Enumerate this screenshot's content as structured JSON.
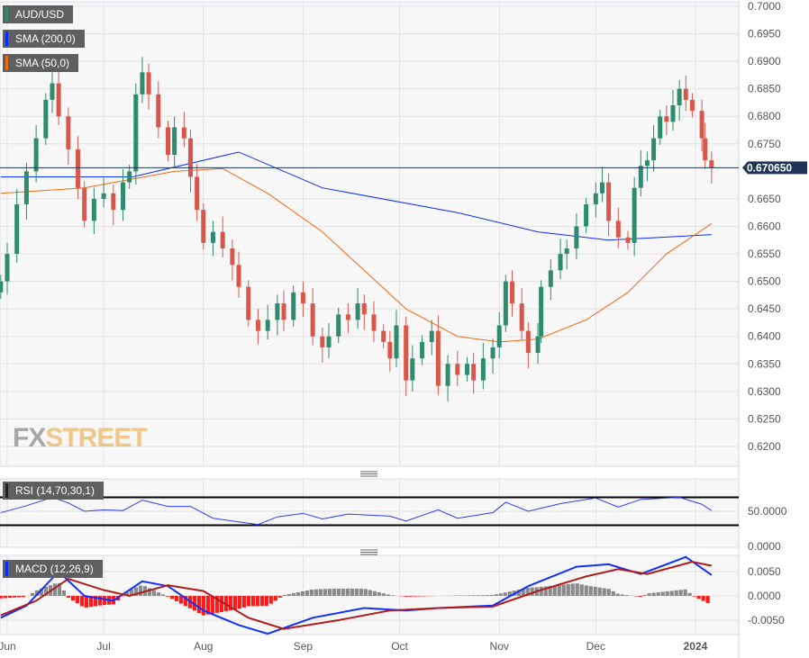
{
  "legend": {
    "symbol": {
      "label": "AUD/USD",
      "color": "#2e8b6e"
    },
    "sma200": {
      "label": "SMA (200,0)",
      "color": "#0a2dff"
    },
    "sma50": {
      "label": "SMA (50,0)",
      "color": "#f06a10"
    },
    "rsi": {
      "label": "RSI (14,70,30,1)",
      "color": "#222222"
    },
    "macd": {
      "label": "MACD (12,26,9)",
      "color": "#0a2dff"
    }
  },
  "logo": {
    "fx": "FX",
    "street": "STREET"
  },
  "chart_data": {
    "type": "candlestick",
    "current_price": "0.670650",
    "ylim": [
      0.615,
      0.7
    ],
    "yticks": [
      "0.7000",
      "0.6950",
      "0.6900",
      "0.6850",
      "0.6800",
      "0.6750",
      "0.6650",
      "0.6600",
      "0.6550",
      "0.6500",
      "0.6450",
      "0.6400",
      "0.6350",
      "0.6300",
      "0.6250",
      "0.6200"
    ],
    "xticks": [
      [
        "Jun",
        "2023-06-01"
      ],
      [
        "Jul",
        "2023-07-01"
      ],
      [
        "Aug",
        "2023-08-01"
      ],
      [
        "Sep",
        "2023-09-01"
      ],
      [
        "Oct",
        "2023-10-01"
      ],
      [
        "Nov",
        "2023-11-01"
      ],
      [
        "Dec",
        "2023-12-01"
      ],
      [
        "2024",
        "2024-01-01"
      ]
    ],
    "closes": [
      [
        "2023-05-30",
        0.65
      ],
      [
        "2023-06-01",
        0.655
      ],
      [
        "2023-06-04",
        0.664
      ],
      [
        "2023-06-07",
        0.67
      ],
      [
        "2023-06-10",
        0.676
      ],
      [
        "2023-06-13",
        0.683
      ],
      [
        "2023-06-15",
        0.686
      ],
      [
        "2023-06-17",
        0.68
      ],
      [
        "2023-06-20",
        0.674
      ],
      [
        "2023-06-23",
        0.667
      ],
      [
        "2023-06-25",
        0.661
      ],
      [
        "2023-06-28",
        0.665
      ],
      [
        "2023-07-01",
        0.666
      ],
      [
        "2023-07-04",
        0.663
      ],
      [
        "2023-07-07",
        0.668
      ],
      [
        "2023-07-09",
        0.67
      ],
      [
        "2023-07-11",
        0.684
      ],
      [
        "2023-07-13",
        0.688
      ],
      [
        "2023-07-15",
        0.684
      ],
      [
        "2023-07-18",
        0.678
      ],
      [
        "2023-07-21",
        0.673
      ],
      [
        "2023-07-23",
        0.678
      ],
      [
        "2023-07-26",
        0.676
      ],
      [
        "2023-07-28",
        0.669
      ],
      [
        "2023-07-30",
        0.663
      ],
      [
        "2023-08-01",
        0.657
      ],
      [
        "2023-08-04",
        0.659
      ],
      [
        "2023-08-07",
        0.656
      ],
      [
        "2023-08-10",
        0.653
      ],
      [
        "2023-08-12",
        0.649
      ],
      [
        "2023-08-15",
        0.643
      ],
      [
        "2023-08-18",
        0.641
      ],
      [
        "2023-08-21",
        0.643
      ],
      [
        "2023-08-24",
        0.646
      ],
      [
        "2023-08-26",
        0.643
      ],
      [
        "2023-08-29",
        0.648
      ],
      [
        "2023-09-01",
        0.646
      ],
      [
        "2023-09-04",
        0.64
      ],
      [
        "2023-09-07",
        0.638
      ],
      [
        "2023-09-09",
        0.64
      ],
      [
        "2023-09-12",
        0.644
      ],
      [
        "2023-09-15",
        0.643
      ],
      [
        "2023-09-18",
        0.646
      ],
      [
        "2023-09-20",
        0.644
      ],
      [
        "2023-09-23",
        0.641
      ],
      [
        "2023-09-26",
        0.639
      ],
      [
        "2023-09-28",
        0.636
      ],
      [
        "2023-09-30",
        0.642
      ],
      [
        "2023-10-03",
        0.632
      ],
      [
        "2023-10-05",
        0.636
      ],
      [
        "2023-10-08",
        0.639
      ],
      [
        "2023-10-11",
        0.641
      ],
      [
        "2023-10-13",
        0.631
      ],
      [
        "2023-10-16",
        0.635
      ],
      [
        "2023-10-19",
        0.633
      ],
      [
        "2023-10-22",
        0.635
      ],
      [
        "2023-10-24",
        0.632
      ],
      [
        "2023-10-27",
        0.636
      ],
      [
        "2023-10-30",
        0.638
      ],
      [
        "2023-11-01",
        0.642
      ],
      [
        "2023-11-03",
        0.65
      ],
      [
        "2023-11-05",
        0.646
      ],
      [
        "2023-11-08",
        0.641
      ],
      [
        "2023-11-10",
        0.637
      ],
      [
        "2023-11-13",
        0.64
      ],
      [
        "2023-11-14",
        0.649
      ],
      [
        "2023-11-17",
        0.652
      ],
      [
        "2023-11-20",
        0.655
      ],
      [
        "2023-11-22",
        0.656
      ],
      [
        "2023-11-25",
        0.66
      ],
      [
        "2023-11-28",
        0.664
      ],
      [
        "2023-12-01",
        0.666
      ],
      [
        "2023-12-03",
        0.668
      ],
      [
        "2023-12-05",
        0.661
      ],
      [
        "2023-12-08",
        0.658
      ],
      [
        "2023-12-11",
        0.657
      ],
      [
        "2023-12-13",
        0.667
      ],
      [
        "2023-12-15",
        0.671
      ],
      [
        "2023-12-17",
        0.672
      ],
      [
        "2023-12-19",
        0.676
      ],
      [
        "2023-12-21",
        0.68
      ],
      [
        "2023-12-23",
        0.679
      ],
      [
        "2023-12-25",
        0.682
      ],
      [
        "2023-12-27",
        0.685
      ],
      [
        "2023-12-29",
        0.683
      ],
      [
        "2023-12-31",
        0.681
      ],
      [
        "2024-01-03",
        0.676
      ],
      [
        "2024-01-04",
        0.672
      ],
      [
        "2024-01-06",
        0.6706
      ]
    ],
    "sma200": [
      [
        "2023-05-30",
        0.669
      ],
      [
        "2023-07-10",
        0.669
      ],
      [
        "2023-08-12",
        0.6735
      ],
      [
        "2023-09-07",
        0.667
      ],
      [
        "2023-10-19",
        0.6625
      ],
      [
        "2023-11-13",
        0.659
      ],
      [
        "2023-12-05",
        0.6575
      ],
      [
        "2024-01-06",
        0.6585
      ]
    ],
    "sma50": [
      [
        "2023-05-30",
        0.666
      ],
      [
        "2023-06-25",
        0.667
      ],
      [
        "2023-07-23",
        0.67
      ],
      [
        "2023-08-07",
        0.6705
      ],
      [
        "2023-08-21",
        0.666
      ],
      [
        "2023-09-07",
        0.659
      ],
      [
        "2023-09-20",
        0.652
      ],
      [
        "2023-10-03",
        0.645
      ],
      [
        "2023-10-19",
        0.64
      ],
      [
        "2023-11-01",
        0.639
      ],
      [
        "2023-11-13",
        0.6395
      ],
      [
        "2023-11-28",
        0.643
      ],
      [
        "2023-12-11",
        0.648
      ],
      [
        "2023-12-23",
        0.655
      ],
      [
        "2024-01-06",
        0.6605
      ]
    ],
    "rsi": {
      "ylim": [
        0,
        100
      ],
      "levels": [
        70,
        30
      ],
      "yticks": [
        "50.0000",
        "0.0000"
      ],
      "values": [
        [
          "2023-05-30",
          48
        ],
        [
          "2023-06-07",
          58
        ],
        [
          "2023-06-15",
          70
        ],
        [
          "2023-06-20",
          62
        ],
        [
          "2023-06-25",
          50
        ],
        [
          "2023-07-01",
          52
        ],
        [
          "2023-07-07",
          51
        ],
        [
          "2023-07-13",
          66
        ],
        [
          "2023-07-21",
          57
        ],
        [
          "2023-07-28",
          57
        ],
        [
          "2023-08-04",
          40
        ],
        [
          "2023-08-18",
          31
        ],
        [
          "2023-08-24",
          42
        ],
        [
          "2023-09-01",
          47
        ],
        [
          "2023-09-07",
          39
        ],
        [
          "2023-09-15",
          46
        ],
        [
          "2023-09-28",
          43
        ],
        [
          "2023-10-03",
          36
        ],
        [
          "2023-10-13",
          52
        ],
        [
          "2023-10-19",
          40
        ],
        [
          "2023-10-30",
          48
        ],
        [
          "2023-11-03",
          63
        ],
        [
          "2023-11-10",
          50
        ],
        [
          "2023-11-20",
          61
        ],
        [
          "2023-12-01",
          69
        ],
        [
          "2023-12-08",
          56
        ],
        [
          "2023-12-15",
          67
        ],
        [
          "2023-12-27",
          70
        ],
        [
          "2024-01-03",
          60
        ],
        [
          "2024-01-06",
          51
        ]
      ]
    },
    "macd": {
      "ylim": [
        -0.008,
        0.0085
      ],
      "yticks": [
        "0.0050",
        "0.0000",
        "-0.0050"
      ],
      "macd": [
        [
          "2023-05-30",
          -0.0045
        ],
        [
          "2023-06-07",
          -0.002
        ],
        [
          "2023-06-17",
          0.005
        ],
        [
          "2023-06-25",
          0.0
        ],
        [
          "2023-07-04",
          -0.001
        ],
        [
          "2023-07-13",
          0.003
        ],
        [
          "2023-07-21",
          0.002
        ],
        [
          "2023-08-01",
          -0.003
        ],
        [
          "2023-08-12",
          -0.006
        ],
        [
          "2023-08-21",
          -0.0078
        ],
        [
          "2023-09-04",
          -0.0045
        ],
        [
          "2023-09-20",
          -0.0025
        ],
        [
          "2023-10-03",
          -0.003
        ],
        [
          "2023-10-13",
          -0.0025
        ],
        [
          "2023-10-30",
          -0.002
        ],
        [
          "2023-11-10",
          0.002
        ],
        [
          "2023-11-25",
          0.006
        ],
        [
          "2023-12-05",
          0.0065
        ],
        [
          "2023-12-15",
          0.0045
        ],
        [
          "2023-12-29",
          0.008
        ],
        [
          "2024-01-06",
          0.0043
        ]
      ],
      "signal": [
        [
          "2023-05-30",
          -0.004
        ],
        [
          "2023-06-10",
          -0.001
        ],
        [
          "2023-06-20",
          0.0035
        ],
        [
          "2023-07-01",
          0.0012
        ],
        [
          "2023-07-09",
          0.0
        ],
        [
          "2023-07-21",
          0.0022
        ],
        [
          "2023-08-01",
          0.001
        ],
        [
          "2023-08-15",
          -0.0045
        ],
        [
          "2023-08-26",
          -0.0068
        ],
        [
          "2023-09-12",
          -0.005
        ],
        [
          "2023-09-28",
          -0.003
        ],
        [
          "2023-10-13",
          -0.0025
        ],
        [
          "2023-10-30",
          -0.0022
        ],
        [
          "2023-11-13",
          0.001
        ],
        [
          "2023-11-28",
          0.004
        ],
        [
          "2023-12-08",
          0.0055
        ],
        [
          "2023-12-17",
          0.0045
        ],
        [
          "2023-12-31",
          0.007
        ],
        [
          "2024-01-06",
          0.0062
        ]
      ]
    }
  }
}
